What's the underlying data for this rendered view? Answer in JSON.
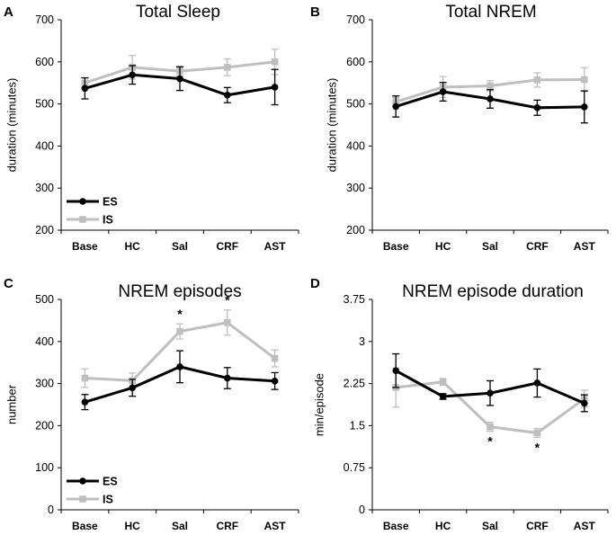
{
  "chart_data": [
    {
      "panel": "A",
      "type": "line",
      "title": "Total Sleep",
      "xlabel": "",
      "ylabel": "duration (minutes)",
      "ylim": [
        200,
        700
      ],
      "yticks": [
        200,
        300,
        400,
        500,
        600,
        700
      ],
      "ytick_labels": [
        "200",
        "300",
        "400",
        "500",
        "600",
        "700"
      ],
      "categories": [
        "Base",
        "HC",
        "Sal",
        "CRF",
        "AST"
      ],
      "series": [
        {
          "name": "ES",
          "color": "#000000",
          "values": [
            537,
            569,
            560,
            521,
            540
          ],
          "errors": [
            25,
            22,
            28,
            18,
            42
          ]
        },
        {
          "name": "IS",
          "color": "#bfbfbf",
          "values": [
            550,
            587,
            578,
            587,
            600
          ],
          "errors": [
            12,
            28,
            12,
            20,
            30
          ]
        }
      ],
      "legend": {
        "position": "bottom-left",
        "entries": [
          "ES",
          "IS"
        ]
      },
      "annotations": []
    },
    {
      "panel": "B",
      "type": "line",
      "title": "Total NREM",
      "xlabel": "",
      "ylabel": "duration (minutes)",
      "ylim": [
        200,
        700
      ],
      "yticks": [
        200,
        300,
        400,
        500,
        600,
        700
      ],
      "ytick_labels": [
        "200",
        "300",
        "400",
        "500",
        "600",
        "700"
      ],
      "categories": [
        "Base",
        "HC",
        "Sal",
        "CRF",
        "AST"
      ],
      "series": [
        {
          "name": "ES",
          "color": "#000000",
          "values": [
            494,
            529,
            512,
            491,
            493
          ],
          "errors": [
            25,
            22,
            22,
            18,
            38
          ]
        },
        {
          "name": "IS",
          "color": "#bfbfbf",
          "values": [
            505,
            540,
            543,
            557,
            558
          ],
          "errors": [
            10,
            25,
            12,
            17,
            28
          ]
        }
      ],
      "legend": null,
      "annotations": []
    },
    {
      "panel": "C",
      "type": "line",
      "title": "NREM episodes",
      "xlabel": "",
      "ylabel": "number",
      "ylim": [
        0,
        500
      ],
      "yticks": [
        0,
        100,
        200,
        300,
        400,
        500
      ],
      "ytick_labels": [
        "0",
        "100",
        "200",
        "300",
        "400",
        "500"
      ],
      "categories": [
        "Base",
        "HC",
        "Sal",
        "CRF",
        "AST"
      ],
      "series": [
        {
          "name": "ES",
          "color": "#000000",
          "values": [
            256,
            290,
            340,
            313,
            306
          ],
          "errors": [
            18,
            20,
            38,
            25,
            20
          ]
        },
        {
          "name": "IS",
          "color": "#bfbfbf",
          "values": [
            313,
            307,
            424,
            445,
            360
          ],
          "errors": [
            22,
            18,
            18,
            30,
            20
          ]
        }
      ],
      "legend": {
        "position": "bottom-left",
        "entries": [
          "ES",
          "IS"
        ]
      },
      "annotations": [
        {
          "category": "Sal",
          "text": "*",
          "placement": "above"
        },
        {
          "category": "CRF",
          "text": "*",
          "placement": "above"
        }
      ]
    },
    {
      "panel": "D",
      "type": "line",
      "title": "NREM episode duration",
      "xlabel": "",
      "ylabel": "min/episode",
      "ylim": [
        0,
        3.75
      ],
      "yticks": [
        0,
        0.75,
        1.5,
        2.25,
        3,
        3.75
      ],
      "ytick_labels": [
        "0",
        "0.75",
        "1.5",
        "2.25",
        "3",
        "3.75"
      ],
      "categories": [
        "Base",
        "HC",
        "Sal",
        "CRF",
        "AST"
      ],
      "series": [
        {
          "name": "ES",
          "color": "#000000",
          "values": [
            2.48,
            2.02,
            2.08,
            2.26,
            1.9
          ],
          "errors": [
            0.3,
            0.05,
            0.22,
            0.25,
            0.15
          ]
        },
        {
          "name": "IS",
          "color": "#bfbfbf",
          "values": [
            2.18,
            2.28,
            1.48,
            1.37,
            1.98
          ],
          "errors": [
            0.35,
            0.06,
            0.08,
            0.08,
            0.15
          ]
        }
      ],
      "legend": null,
      "annotations": [
        {
          "category": "Sal",
          "text": "*",
          "placement": "below"
        },
        {
          "category": "CRF",
          "text": "*",
          "placement": "below"
        }
      ]
    }
  ]
}
